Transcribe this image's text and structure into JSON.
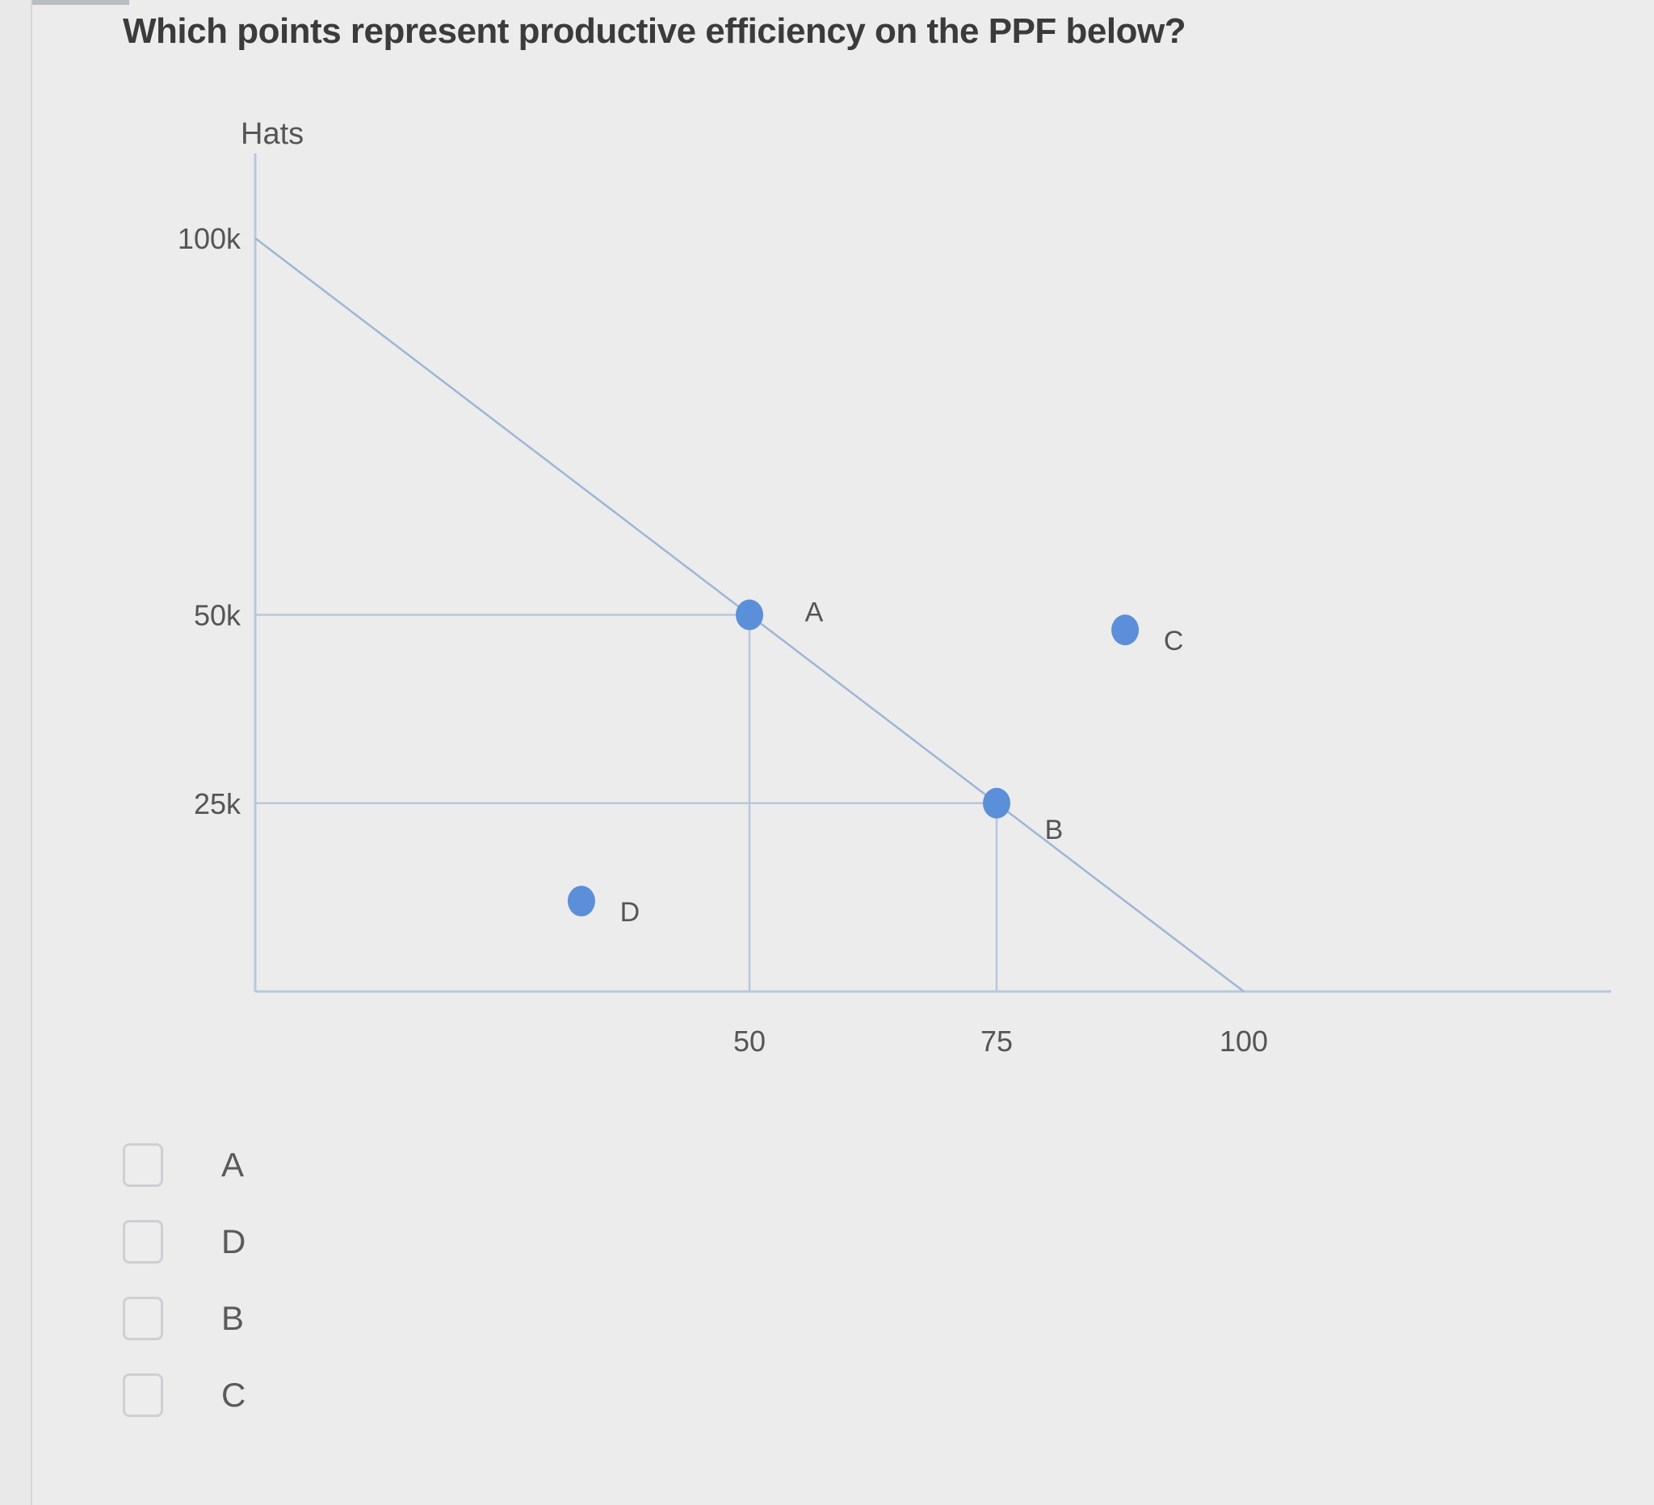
{
  "question": "Which points represent productive efficiency on the PPF below?",
  "chart_data": {
    "type": "line",
    "ylabel": "Hats",
    "xlabel": "",
    "y_ticks": [
      "100k",
      "50k",
      "25k"
    ],
    "x_ticks": [
      "50",
      "75",
      "100"
    ],
    "ppf_line": {
      "x": [
        0,
        100
      ],
      "y": [
        100,
        0
      ]
    },
    "guides": [
      {
        "x": 50,
        "y": 50
      },
      {
        "x": 75,
        "y": 25
      }
    ],
    "points": [
      {
        "label": "A",
        "x": 50,
        "y": 50
      },
      {
        "label": "B",
        "x": 75,
        "y": 25
      },
      {
        "label": "C",
        "x": 88,
        "y": 48
      },
      {
        "label": "D",
        "x": 33,
        "y": 12
      }
    ],
    "colors": {
      "point": "#5b8fd9",
      "line": "#9db6d6",
      "axis": "#b8c8dc"
    }
  },
  "options": [
    {
      "label": "A"
    },
    {
      "label": "D"
    },
    {
      "label": "B"
    },
    {
      "label": "C"
    }
  ]
}
